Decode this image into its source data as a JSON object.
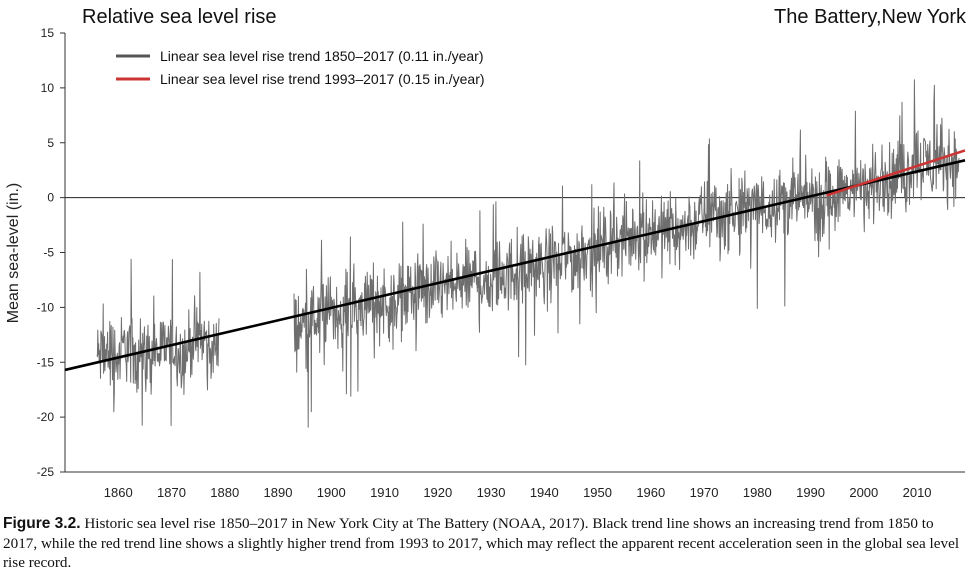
{
  "chart_data": {
    "type": "line",
    "title": "Relative sea level rise",
    "location": "The Battery,New York",
    "ylabel": "Mean sea-level (in.)",
    "xlabel": "",
    "xlim": [
      1850,
      2019
    ],
    "ylim": [
      -25,
      15
    ],
    "y_ticks": [
      15,
      10,
      5,
      0,
      -5,
      -10,
      -15,
      -20,
      -25
    ],
    "x_ticks": [
      1860,
      1870,
      1880,
      1890,
      1900,
      1910,
      1920,
      1930,
      1940,
      1950,
      1960,
      1970,
      1980,
      1990,
      2000,
      2010
    ],
    "zero_line": 0,
    "legend_position": "top-left",
    "legend": [
      {
        "label": "Linear sea level rise trend 1850–2017 (0.11 in./year)",
        "color": "#555555"
      },
      {
        "label": "Linear sea level rise trend 1993–2017 (0.15 in./year)",
        "color": "#cc3333"
      }
    ],
    "series": [
      {
        "kind": "monthly",
        "color": "#6e6e6e",
        "segments": [
          {
            "x": [
              1856,
              1857,
              1858,
              1859,
              1860,
              1861,
              1862,
              1863,
              1864,
              1865,
              1866,
              1867,
              1868,
              1869,
              1870,
              1871,
              1872,
              1873,
              1874,
              1875,
              1876,
              1877,
              1878
            ],
            "y": [
              -14.6,
              -14.3,
              -14.2,
              -14.0,
              -14.8,
              -13.6,
              -13.4,
              -15.0,
              -13.3,
              -14.4,
              -14.5,
              -13.9,
              -14.2,
              -13.3,
              -13.7,
              -13.6,
              -14.6,
              -14.0,
              -12.6,
              -13.6,
              -12.7,
              -13.5,
              -13.8
            ]
          },
          {
            "x": [
              1893,
              1894,
              1895,
              1896,
              1897,
              1898,
              1899,
              1900,
              1901,
              1902,
              1903,
              1904,
              1905,
              1906,
              1907,
              1908,
              1909,
              1910,
              1911,
              1912,
              1913,
              1914,
              1915,
              1916,
              1917,
              1918,
              1919,
              1920,
              1921,
              1922,
              1923,
              1924,
              1925,
              1926,
              1927,
              1928,
              1929,
              1930,
              1931,
              1932,
              1933,
              1934,
              1935,
              1936,
              1937,
              1938,
              1939,
              1940,
              1941,
              1942,
              1943,
              1944,
              1945,
              1946,
              1947,
              1948,
              1949,
              1950,
              1951,
              1952,
              1953,
              1954,
              1955,
              1956,
              1957,
              1958,
              1959,
              1960,
              1961,
              1962,
              1963,
              1964,
              1965,
              1966,
              1967,
              1968,
              1969,
              1970,
              1971,
              1972,
              1973,
              1974,
              1975,
              1976,
              1977,
              1978,
              1979,
              1980,
              1981,
              1982,
              1983,
              1984,
              1985,
              1986,
              1987,
              1988,
              1989,
              1990,
              1991,
              1992,
              1993,
              1994,
              1995,
              1996,
              1997,
              1998,
              1999,
              2000,
              2001,
              2002,
              2003,
              2004,
              2005,
              2006,
              2007,
              2008,
              2009,
              2010,
              2011,
              2012,
              2013,
              2014,
              2015,
              2016,
              2017
            ],
            "y": [
              -11.6,
              -11.9,
              -11.3,
              -10.9,
              -11.1,
              -10.5,
              -10.8,
              -10.1,
              -10.3,
              -10.6,
              -9.6,
              -10.0,
              -10.3,
              -9.6,
              -9.8,
              -9.1,
              -9.7,
              -9.3,
              -9.9,
              -8.9,
              -9.3,
              -9.0,
              -8.8,
              -8.6,
              -8.5,
              -8.9,
              -8.4,
              -8.0,
              -8.3,
              -7.9,
              -8.2,
              -8.0,
              -7.6,
              -7.8,
              -7.1,
              -7.6,
              -7.9,
              -7.6,
              -7.2,
              -6.9,
              -7.3,
              -6.6,
              -6.9,
              -6.7,
              -6.3,
              -6.1,
              -6.5,
              -6.2,
              -5.8,
              -5.7,
              -5.9,
              -5.4,
              -5.2,
              -5.7,
              -4.9,
              -4.5,
              -5.1,
              -4.3,
              -4.6,
              -4.3,
              -3.8,
              -4.2,
              -3.6,
              -4.0,
              -3.1,
              -3.5,
              -3.0,
              -3.3,
              -2.6,
              -3.3,
              -3.0,
              -2.4,
              -3.2,
              -3.1,
              -2.2,
              -2.8,
              -1.9,
              -1.6,
              -1.7,
              -0.9,
              -1.5,
              -1.8,
              -1.1,
              -1.6,
              -1.3,
              -0.7,
              -1.1,
              -0.6,
              -1.1,
              -0.7,
              -0.2,
              -0.6,
              0.1,
              -0.4,
              -0.2,
              -0.1,
              -0.6,
              0.1,
              -0.2,
              -0.5,
              0.2,
              0.6,
              0.1,
              0.5,
              0.4,
              1.0,
              1.2,
              0.6,
              0.7,
              1.3,
              1.6,
              1.8,
              1.3,
              1.9,
              2.3,
              1.8,
              3.1,
              3.8,
              3.0,
              3.4,
              2.6,
              3.2,
              3.0,
              3.4,
              3.1
            ]
          }
        ]
      },
      {
        "name": "Linear sea level rise trend 1850–2017 (0.11 in./year)",
        "kind": "trend",
        "color": "#000000",
        "x": [
          1850,
          2019
        ],
        "y": [
          -15.7,
          3.4
        ]
      },
      {
        "name": "Linear sea level rise trend 1993–2017 (0.15 in./year)",
        "kind": "trend",
        "color": "#cc3333",
        "x": [
          1993,
          2019
        ],
        "y": [
          0.2,
          4.3
        ]
      }
    ]
  },
  "caption": {
    "label": "Figure 3.2.",
    "text": "Historic sea level rise 1850–2017 in New York City at The Battery (NOAA, 2017). Black trend line shows an increasing trend from 1850 to 2017, while the red trend line shows a slightly higher trend from 1993 to 2017, which may reflect the apparent recent acceleration seen in the global sea level rise record."
  }
}
